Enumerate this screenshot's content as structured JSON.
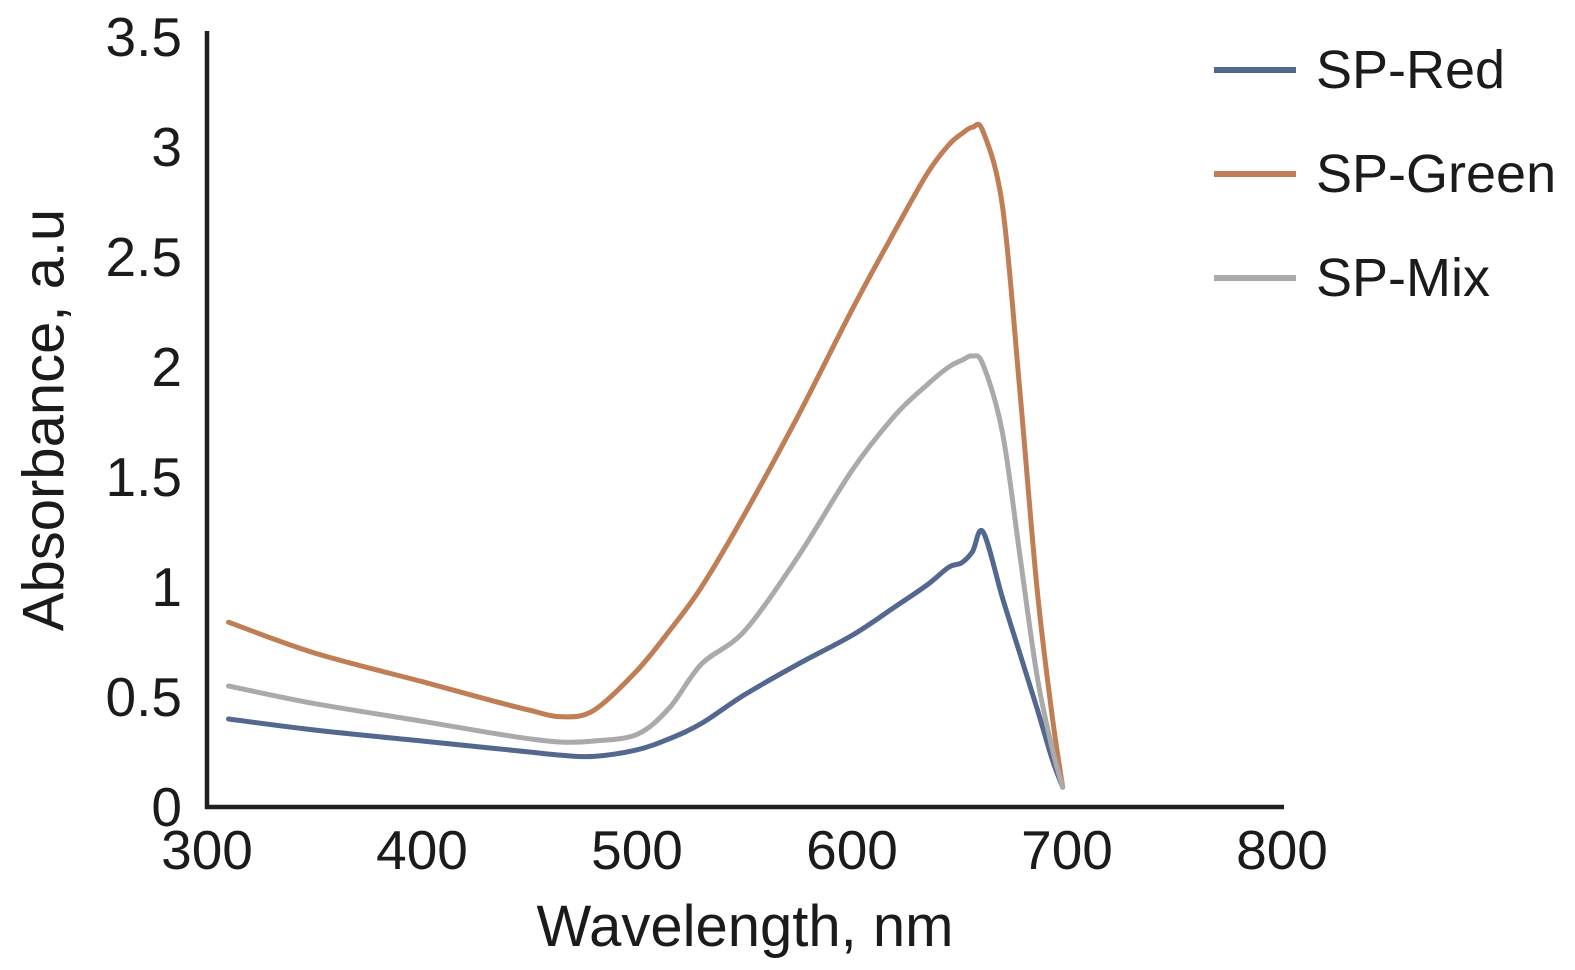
{
  "figure": {
    "background": "#ffffff",
    "axis_color": "#1f1f1f",
    "text_color": "#1b1b1b"
  },
  "chart_data": {
    "type": "line",
    "title": "",
    "xlabel": "Wavelength, nm",
    "ylabel": "Absorbance, a.u",
    "xlim": [
      300,
      800
    ],
    "ylim": [
      0,
      3.5
    ],
    "grid": false,
    "legend_position": "top-right",
    "x_ticks": [
      300,
      400,
      500,
      600,
      700,
      800
    ],
    "x_tick_labels": [
      "300",
      "400",
      "500",
      "600",
      "700",
      "800"
    ],
    "y_ticks": [
      0,
      0.5,
      1,
      1.5,
      2,
      2.5,
      3,
      3.5
    ],
    "y_tick_labels": [
      "0",
      "0.5",
      "1",
      "1.5",
      "2",
      "2.5",
      "3",
      "3.5"
    ],
    "x": [
      310,
      350,
      400,
      430,
      450,
      465,
      480,
      500,
      515,
      530,
      550,
      575,
      600,
      620,
      635,
      645,
      651,
      656,
      661,
      670,
      678,
      686,
      693,
      698
    ],
    "series": [
      {
        "name": "SP-Red",
        "color": "#53688f",
        "values": [
          0.4,
          0.35,
          0.3,
          0.27,
          0.25,
          0.235,
          0.23,
          0.26,
          0.31,
          0.38,
          0.51,
          0.65,
          0.78,
          0.91,
          1.01,
          1.09,
          1.11,
          1.16,
          1.25,
          0.95,
          0.7,
          0.45,
          0.22,
          0.09
        ]
      },
      {
        "name": "SP-Green",
        "color": "#bf7e55",
        "values": [
          0.84,
          0.7,
          0.57,
          0.49,
          0.44,
          0.41,
          0.44,
          0.62,
          0.8,
          1.0,
          1.33,
          1.78,
          2.26,
          2.62,
          2.88,
          3.01,
          3.06,
          3.09,
          3.07,
          2.73,
          1.9,
          1.0,
          0.42,
          0.09
        ]
      },
      {
        "name": "SP-Mix",
        "color": "#aaaaaa",
        "values": [
          0.55,
          0.47,
          0.39,
          0.34,
          0.31,
          0.295,
          0.3,
          0.33,
          0.45,
          0.65,
          0.8,
          1.14,
          1.53,
          1.78,
          1.92,
          2.0,
          2.03,
          2.05,
          2.01,
          1.7,
          1.15,
          0.6,
          0.27,
          0.09
        ]
      }
    ]
  }
}
